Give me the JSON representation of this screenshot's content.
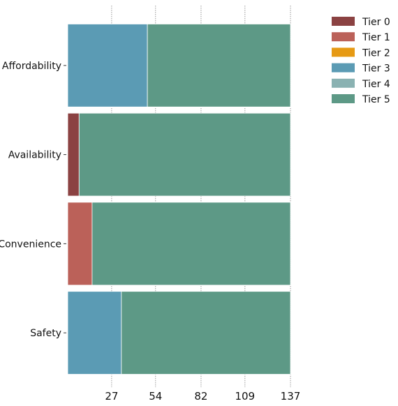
{
  "chart_data": {
    "type": "bar",
    "orientation": "horizontal",
    "stacked": true,
    "title": "",
    "xlabel": "",
    "ylabel": "",
    "categories": [
      "Affordability",
      "Availability",
      "Convenience",
      "Safety"
    ],
    "series": [
      {
        "name": "Tier 0",
        "color": "#8b4242",
        "values": [
          0,
          7,
          0,
          0
        ]
      },
      {
        "name": "Tier 1",
        "color": "#bb6159",
        "values": [
          0,
          0,
          15,
          0
        ]
      },
      {
        "name": "Tier 2",
        "color": "#e69a14",
        "values": [
          0,
          0,
          0,
          0
        ]
      },
      {
        "name": "Tier 3",
        "color": "#5b9bb4",
        "values": [
          49,
          0,
          0,
          33
        ]
      },
      {
        "name": "Tier 4",
        "color": "#8ab2b2",
        "values": [
          0,
          0,
          0,
          0
        ]
      },
      {
        "name": "Tier 5",
        "color": "#5d9986",
        "values": [
          88,
          130,
          122,
          104
        ]
      }
    ],
    "xticks": [
      27,
      54,
      82,
      109,
      137
    ],
    "xlim": [
      0,
      137
    ],
    "grid": "vertical dotted",
    "legend": "top-right"
  }
}
